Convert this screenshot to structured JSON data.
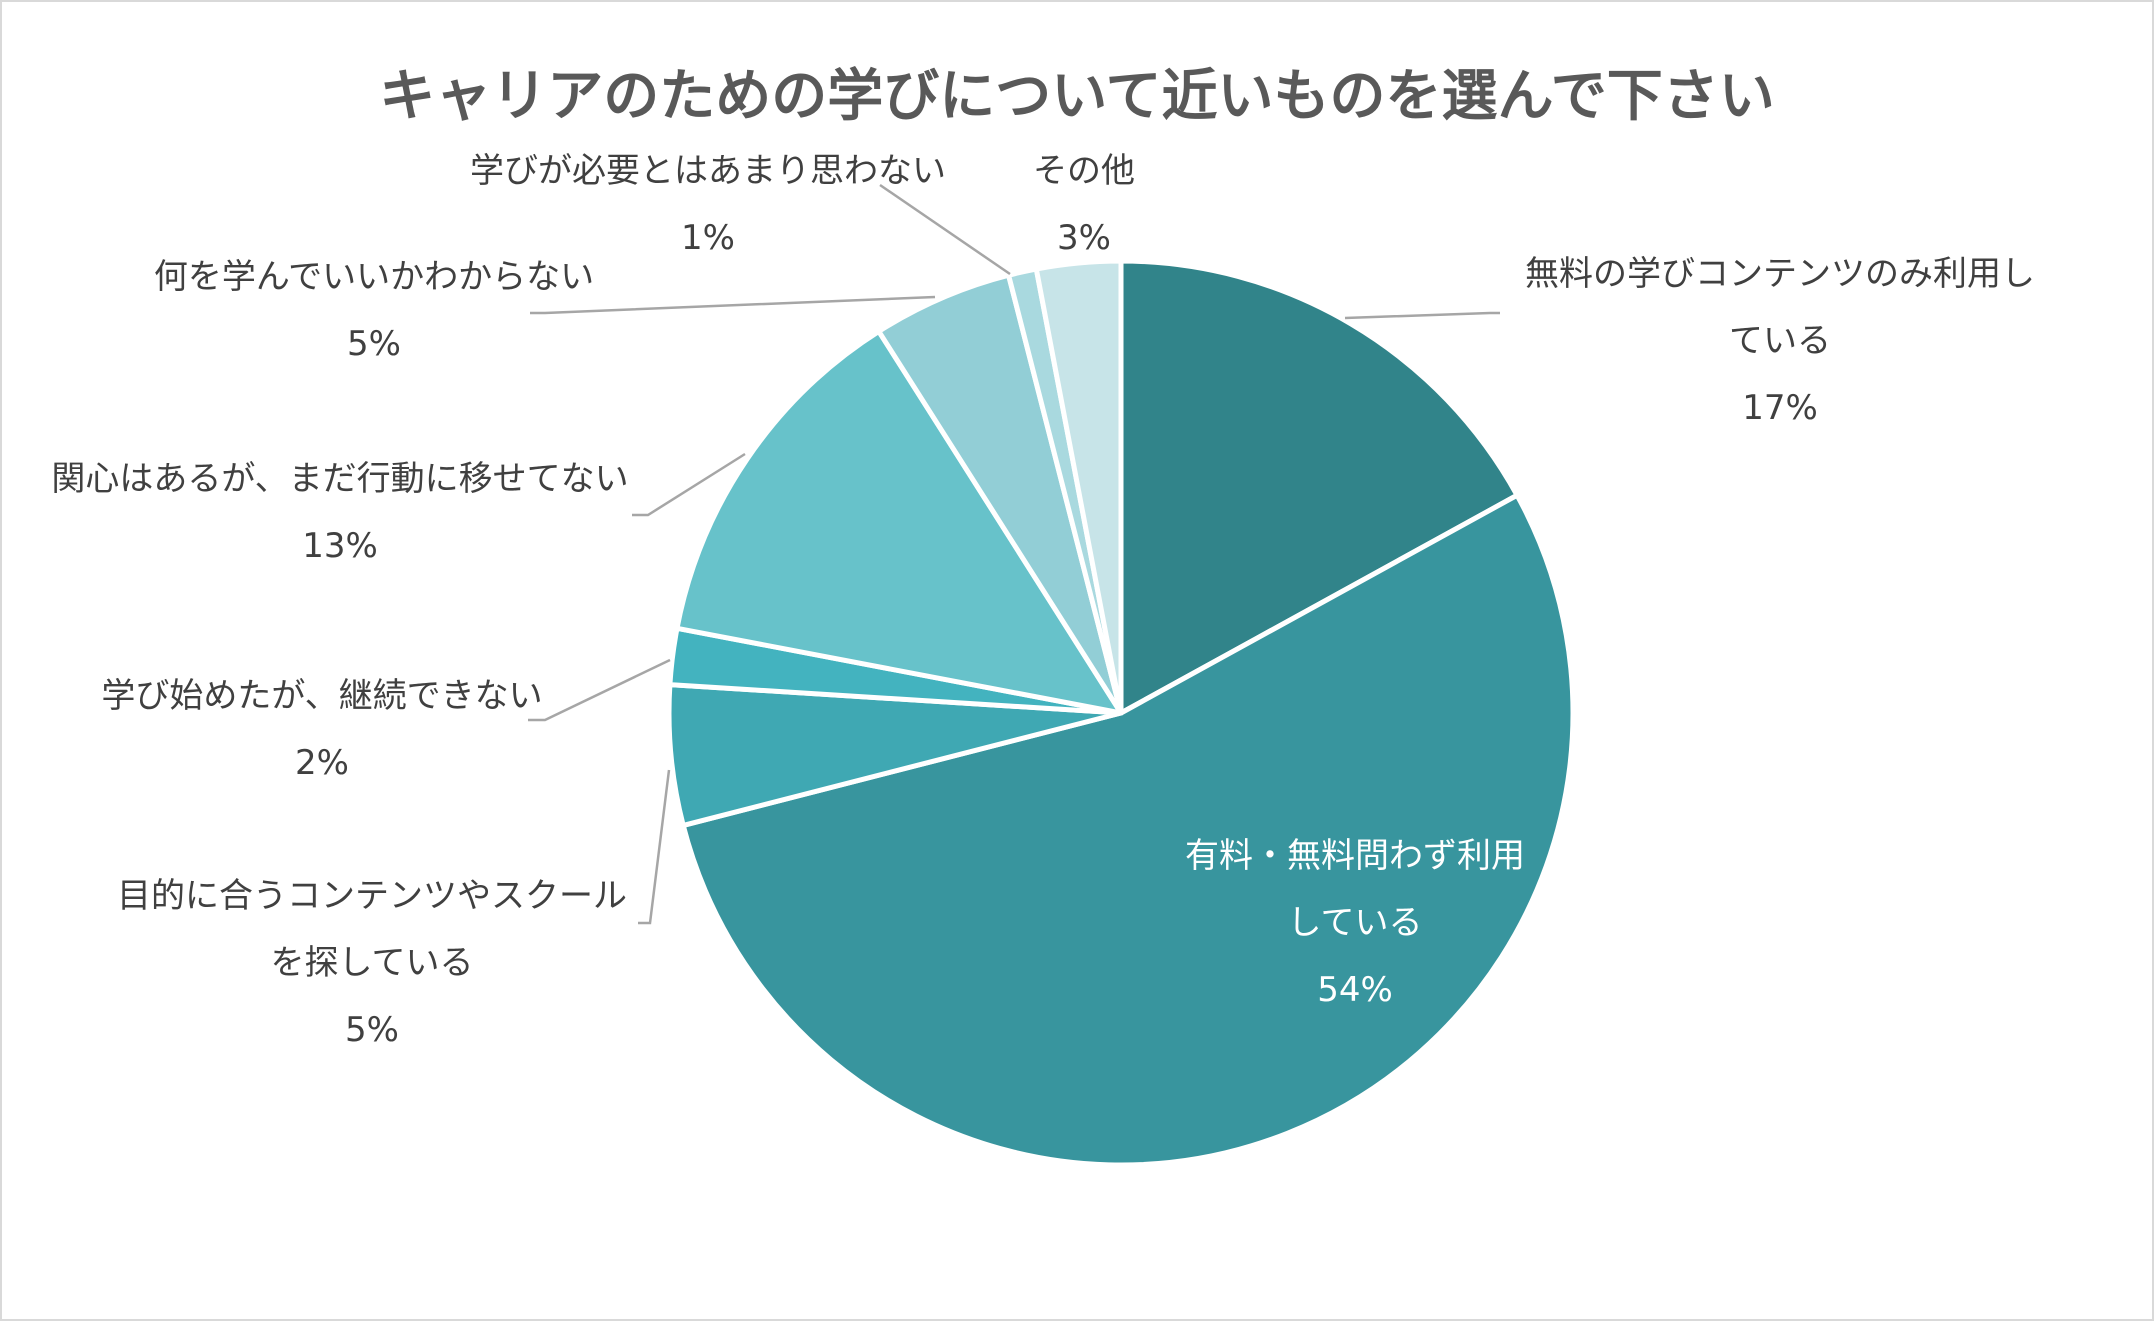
{
  "chart_data": {
    "type": "pie",
    "title": "キャリアのための学びについて近いものを選んで下さい",
    "slices": [
      {
        "label_lines": [
          "無料の学びコンテンツのみ利用し",
          "ている"
        ],
        "value": 17,
        "percent_label": "17%",
        "color": "#31848a"
      },
      {
        "label_lines": [
          "有料・無料問わず利用",
          "している"
        ],
        "value": 54,
        "percent_label": "54%",
        "color": "#38959e"
      },
      {
        "label_lines": [
          "目的に合うコンテンツやスクール",
          "を探している"
        ],
        "value": 5,
        "percent_label": "5%",
        "color": "#3fa8b3"
      },
      {
        "label_lines": [
          "学び始めたが、継続できない"
        ],
        "value": 2,
        "percent_label": "2%",
        "color": "#43b3bf"
      },
      {
        "label_lines": [
          "関心はあるが、まだ行動に移せてない"
        ],
        "value": 13,
        "percent_label": "13%",
        "color": "#67c2ca"
      },
      {
        "label_lines": [
          "何を学んでいいかわからない"
        ],
        "value": 5,
        "percent_label": "5%",
        "color": "#92ced6"
      },
      {
        "label_lines": [
          "学びが必要とはあまり思わない"
        ],
        "value": 1,
        "percent_label": "1%",
        "color": "#a9d9df"
      },
      {
        "label_lines": [
          "その他"
        ],
        "value": 3,
        "percent_label": "3%",
        "color": "#c7e4e8"
      }
    ]
  }
}
